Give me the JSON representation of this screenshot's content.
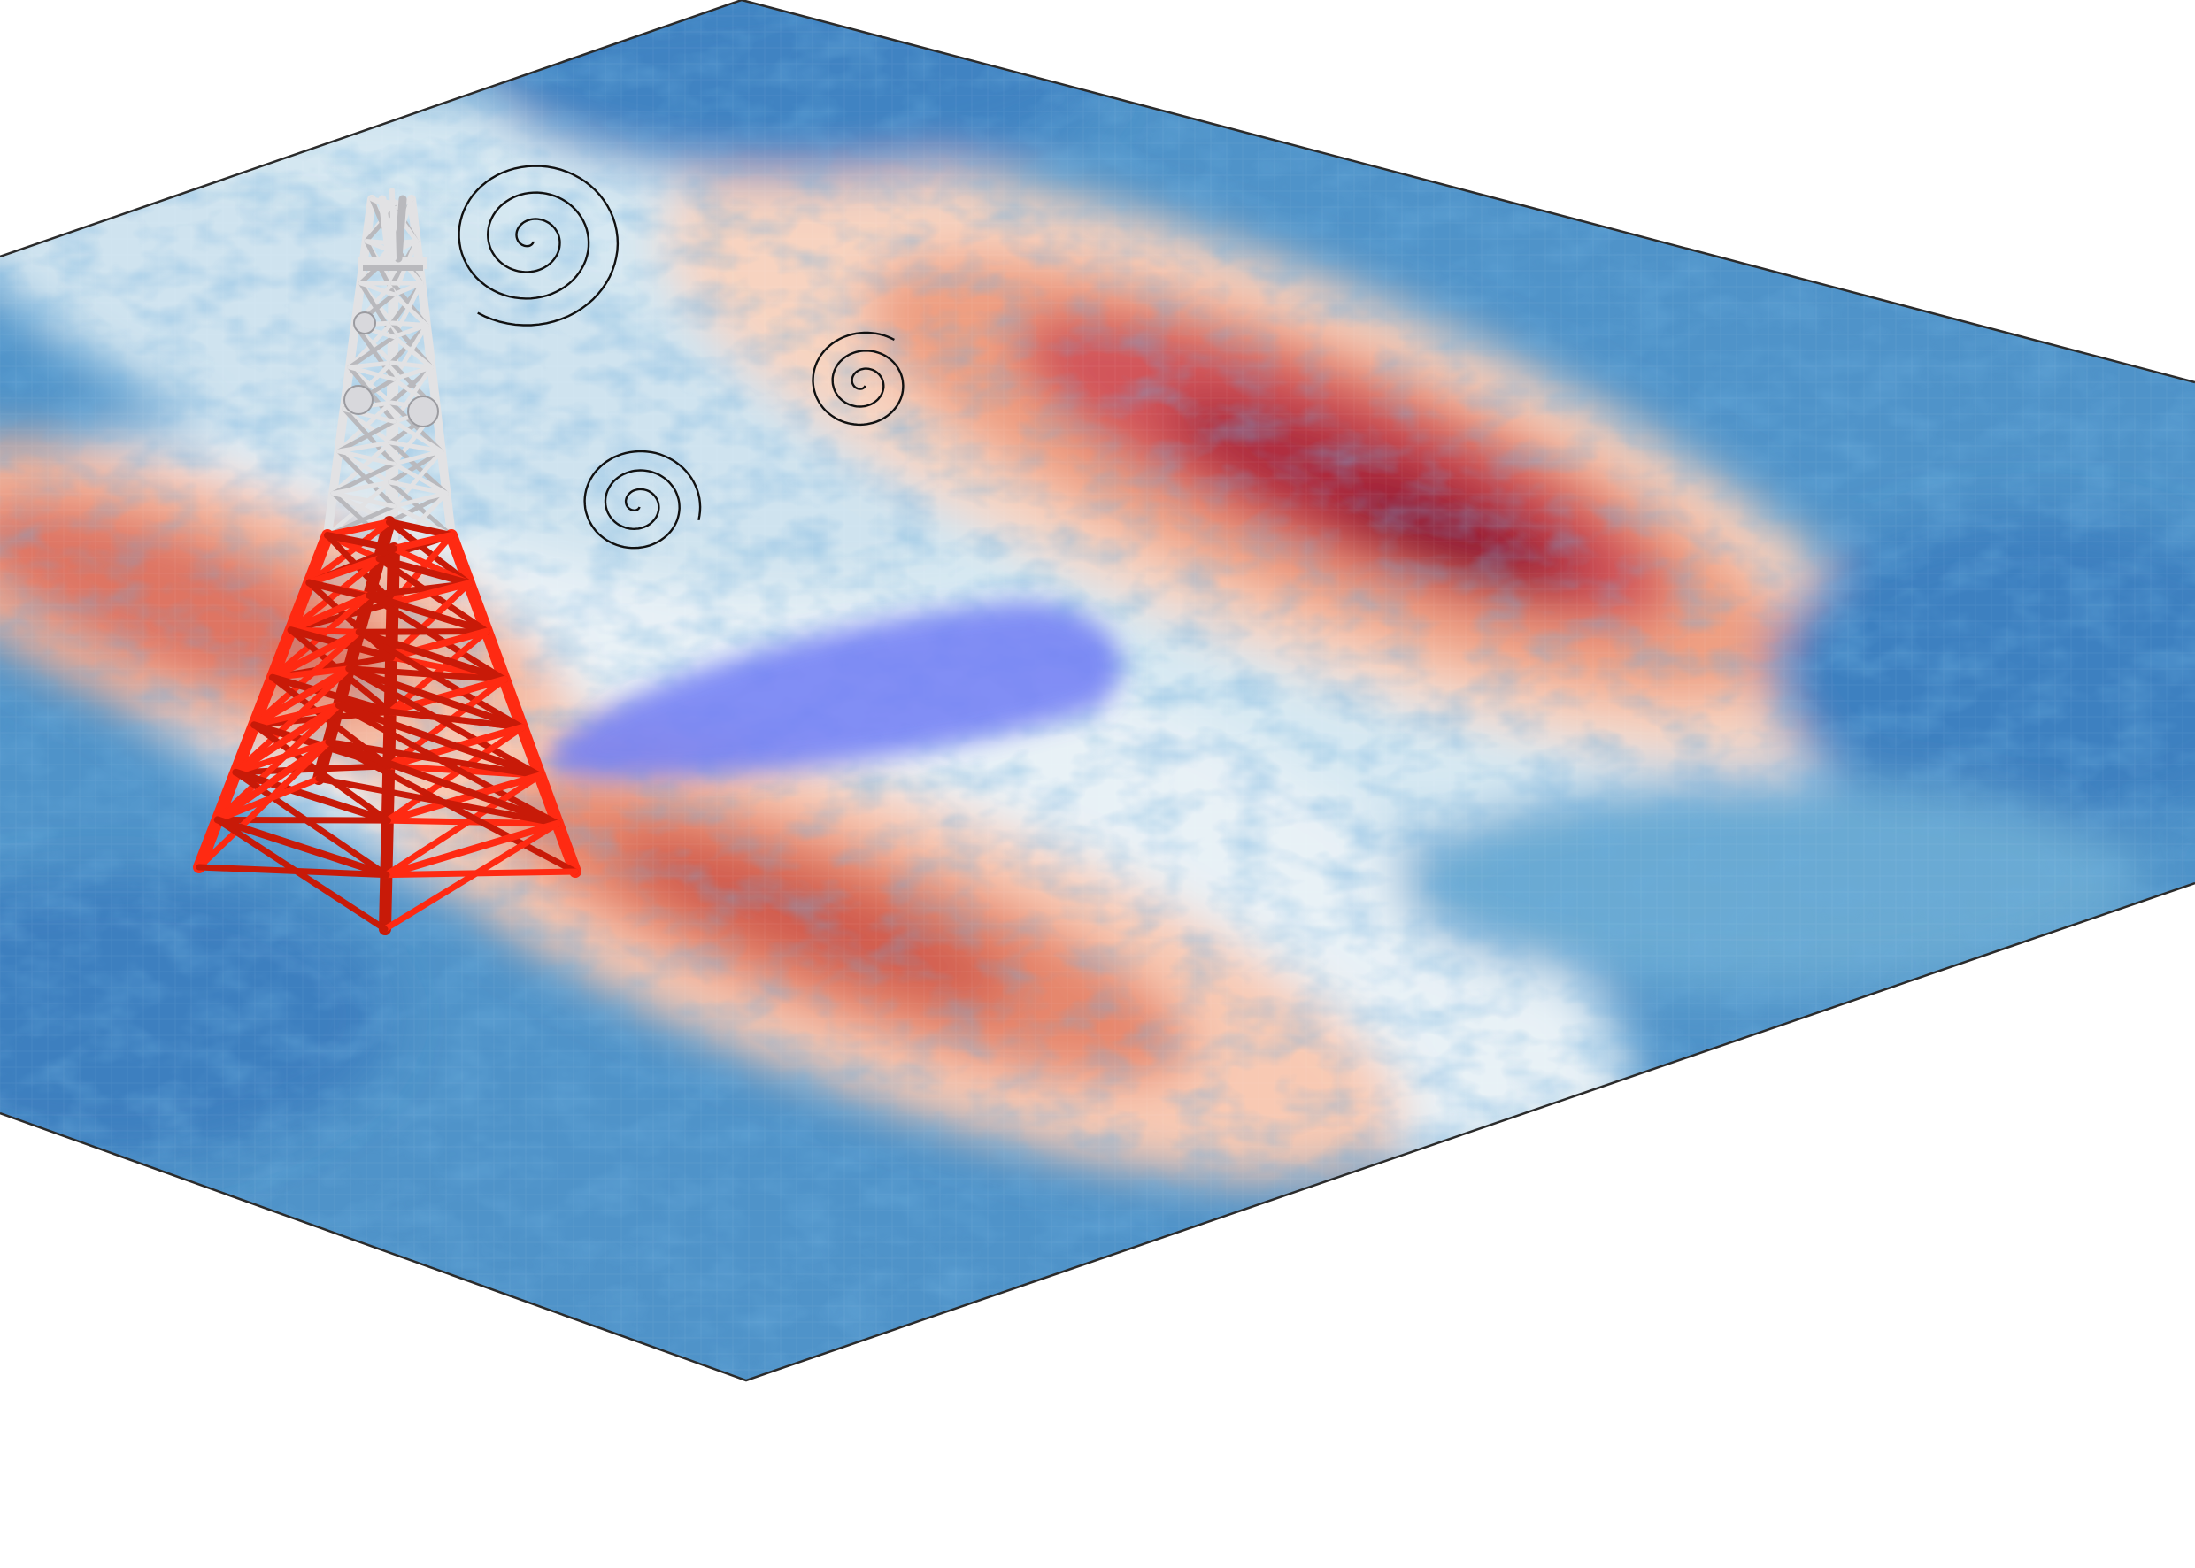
{
  "figure": {
    "description_free": true,
    "colormap": [
      "#2166ac",
      "#4393c3",
      "#92c5de",
      "#d1e5f0",
      "#f7f7f7",
      "#fddbc7",
      "#f4a582",
      "#d6604d",
      "#b2182b",
      "#67001f"
    ],
    "tower_colors": {
      "lower": "#ff2a12",
      "lower_dark": "#c81a08",
      "upper": "#e2e2e4",
      "upper_dark": "#b9b9bd"
    },
    "overlay_color": "#6f7df5",
    "outline_color": "#2b2b2b",
    "signal_stroke": "#111111"
  },
  "icons": {
    "tower": "radio-tower-icon",
    "signal": "spiral-signal-icon"
  }
}
